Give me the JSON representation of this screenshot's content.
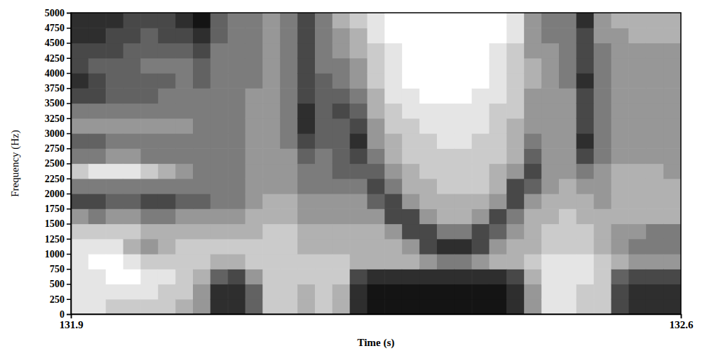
{
  "chart_data": {
    "type": "heatmap",
    "x_label": "Time (s)",
    "y_label": "Frequency (Hz)",
    "xlim": [
      131.9,
      132.6
    ],
    "xticks": [
      131.9,
      132.6
    ],
    "ylim": [
      0,
      5000
    ],
    "yticks": [
      0,
      250,
      500,
      750,
      1000,
      1250,
      1500,
      1750,
      2000,
      2250,
      2500,
      2750,
      3000,
      3250,
      3500,
      3750,
      4000,
      4250,
      4500,
      4750,
      5000
    ],
    "x_bins": [
      131.9,
      131.92,
      131.94,
      131.96,
      131.98,
      132.0,
      132.02,
      132.04,
      132.06,
      132.08,
      132.1,
      132.12,
      132.14,
      132.16,
      132.18,
      132.2,
      132.22,
      132.24,
      132.26,
      132.28,
      132.3,
      132.32,
      132.34,
      132.36,
      132.38,
      132.4,
      132.42,
      132.44,
      132.46,
      132.48,
      132.5,
      132.52,
      132.54,
      132.56,
      132.58,
      132.6
    ],
    "y_bins": [
      0,
      250,
      500,
      750,
      1000,
      1250,
      1500,
      1750,
      2000,
      2250,
      2500,
      2750,
      3000,
      3250,
      3500,
      3750,
      4000,
      4250,
      4500,
      4750,
      5000
    ],
    "zlim": [
      0,
      9
    ],
    "values": [
      [
        1,
        1,
        1,
        1,
        1,
        2,
        4,
        7,
        5,
        2,
        5,
        6,
        4,
        5,
        7,
        8,
        7,
        7,
        8,
        8
      ],
      [
        1,
        1,
        1,
        0,
        1,
        2,
        5,
        7,
        5,
        1,
        5,
        6,
        4,
        5,
        7,
        7,
        6,
        7,
        8,
        8
      ],
      [
        2,
        1,
        0,
        0,
        1,
        2,
        4,
        6,
        5,
        1,
        4,
        5,
        4,
        5,
        6,
        6,
        6,
        7,
        7,
        8
      ],
      [
        2,
        1,
        0,
        1,
        3,
        2,
        4,
        6,
        5,
        1,
        4,
        5,
        4,
        5,
        6,
        6,
        6,
        6,
        7,
        7
      ],
      [
        2,
        1,
        1,
        2,
        4,
        3,
        5,
        7,
        5,
        2,
        5,
        5,
        4,
        5,
        6,
        6,
        5,
        6,
        6,
        7
      ],
      [
        2,
        2,
        1,
        2,
        3,
        3,
        5,
        7,
        5,
        3,
        5,
        5,
        4,
        5,
        5,
        6,
        5,
        6,
        7,
        7
      ],
      [
        3,
        2,
        2,
        2,
        2,
        3,
        4,
        6,
        5,
        4,
        5,
        5,
        4,
        5,
        5,
        5,
        5,
        6,
        7,
        8
      ],
      [
        4,
        4,
        3,
        2,
        2,
        3,
        4,
        6,
        5,
        5,
        5,
        5,
        5,
        5,
        5,
        6,
        6,
        7,
        8,
        9
      ],
      [
        8,
        8,
        6,
        3,
        2,
        3,
        4,
        5,
        5,
        5,
        5,
        5,
        5,
        5,
        5,
        5,
        5,
        5,
        6,
        6
      ],
      [
        8,
        8,
        7,
        3,
        2,
        3,
        4,
        5,
        5,
        5,
        5,
        5,
        5,
        5,
        5,
        5,
        5,
        5,
        5,
        5
      ],
      [
        6,
        6,
        4,
        2,
        2,
        3,
        3,
        4,
        4,
        4,
        4,
        4,
        4,
        4,
        4,
        5,
        5,
        5,
        5,
        5
      ],
      [
        2,
        2,
        2,
        2,
        2,
        2,
        3,
        3,
        4,
        4,
        4,
        4,
        4,
        4,
        4,
        4,
        4,
        4,
        4,
        4
      ],
      [
        2,
        2,
        2,
        2,
        2,
        2,
        3,
        3,
        4,
        4,
        4,
        5,
        5,
        5,
        5,
        5,
        5,
        5,
        5,
        5
      ],
      [
        3,
        3,
        2,
        2,
        3,
        3,
        4,
        4,
        5,
        5,
        6,
        7,
        8,
        8,
        7,
        7,
        7,
        7,
        7,
        7
      ],
      [
        2,
        2,
        2,
        2,
        3,
        3,
        4,
        4,
        5,
        5,
        5,
        6,
        6,
        6,
        6,
        6,
        5,
        5,
        5,
        5
      ],
      [
        3,
        3,
        2,
        2,
        3,
        3,
        4,
        4,
        5,
        6,
        6,
        6,
        6,
        7,
        6,
        5,
        5,
        4,
        4,
        3
      ],
      [
        8,
        8,
        7,
        3,
        3,
        3,
        4,
        4,
        5,
        6,
        7,
        8,
        7,
        6,
        5,
        4,
        4,
        3,
        3,
        2
      ],
      [
        9,
        9,
        8,
        3,
        3,
        3,
        4,
        6,
        7,
        6,
        5,
        4,
        4,
        3,
        3,
        2,
        2,
        2,
        1,
        1
      ],
      [
        9,
        9,
        8,
        3,
        3,
        4,
        7,
        7,
        5,
        4,
        3,
        3,
        2,
        2,
        1,
        1,
        1,
        1,
        0,
        0
      ],
      [
        9,
        9,
        8,
        3,
        4,
        7,
        7,
        4,
        3,
        3,
        2,
        2,
        2,
        1,
        1,
        0,
        0,
        0,
        0,
        0
      ],
      [
        9,
        9,
        8,
        4,
        7,
        7,
        4,
        3,
        3,
        2,
        2,
        2,
        1,
        1,
        0,
        0,
        0,
        0,
        0,
        0
      ],
      [
        9,
        9,
        8,
        5,
        8,
        5,
        3,
        3,
        2,
        2,
        2,
        1,
        1,
        1,
        0,
        0,
        0,
        0,
        0,
        0
      ],
      [
        9,
        9,
        8,
        5,
        8,
        5,
        3,
        3,
        2,
        2,
        2,
        1,
        1,
        1,
        0,
        0,
        0,
        0,
        0,
        0
      ],
      [
        9,
        9,
        8,
        4,
        7,
        7,
        4,
        3,
        2,
        2,
        2,
        2,
        1,
        1,
        1,
        0,
        0,
        0,
        0,
        0
      ],
      [
        9,
        9,
        8,
        3,
        4,
        6,
        7,
        4,
        3,
        3,
        2,
        2,
        2,
        2,
        1,
        1,
        1,
        1,
        0,
        0
      ],
      [
        8,
        8,
        7,
        3,
        3,
        4,
        5,
        7,
        7,
        4,
        3,
        3,
        3,
        2,
        2,
        2,
        2,
        2,
        1,
        1
      ],
      [
        4,
        4,
        3,
        2,
        3,
        3,
        3,
        4,
        6,
        7,
        6,
        5,
        4,
        4,
        4,
        3,
        3,
        4,
        4,
        4
      ],
      [
        1,
        1,
        1,
        1,
        2,
        2,
        3,
        3,
        4,
        4,
        4,
        4,
        4,
        4,
        4,
        4,
        4,
        4,
        5,
        5
      ],
      [
        1,
        1,
        1,
        1,
        2,
        2,
        2,
        3,
        3,
        4,
        4,
        4,
        4,
        4,
        4,
        5,
        5,
        5,
        5,
        5
      ],
      [
        2,
        2,
        1,
        1,
        2,
        2,
        3,
        3,
        4,
        5,
        7,
        8,
        7,
        7,
        7,
        8,
        7,
        7,
        7,
        8
      ],
      [
        2,
        2,
        2,
        2,
        3,
        3,
        3,
        4,
        4,
        4,
        5,
        5,
        5,
        5,
        5,
        5,
        5,
        5,
        4,
        4
      ],
      [
        7,
        7,
        6,
        3,
        4,
        4,
        3,
        3,
        3,
        3,
        4,
        4,
        4,
        4,
        4,
        4,
        4,
        4,
        4,
        3
      ],
      [
        8,
        8,
        7,
        4,
        5,
        4,
        3,
        3,
        3,
        3,
        4,
        4,
        4,
        4,
        4,
        4,
        4,
        4,
        3,
        3
      ],
      [
        8,
        8,
        7,
        4,
        5,
        5,
        3,
        3,
        3,
        3,
        4,
        4,
        4,
        4,
        4,
        4,
        4,
        4,
        3,
        3
      ],
      [
        8,
        8,
        7,
        4,
        5,
        5,
        3,
        3,
        3,
        4,
        4,
        4,
        4,
        4,
        4,
        4,
        4,
        4,
        3,
        3
      ]
    ]
  }
}
